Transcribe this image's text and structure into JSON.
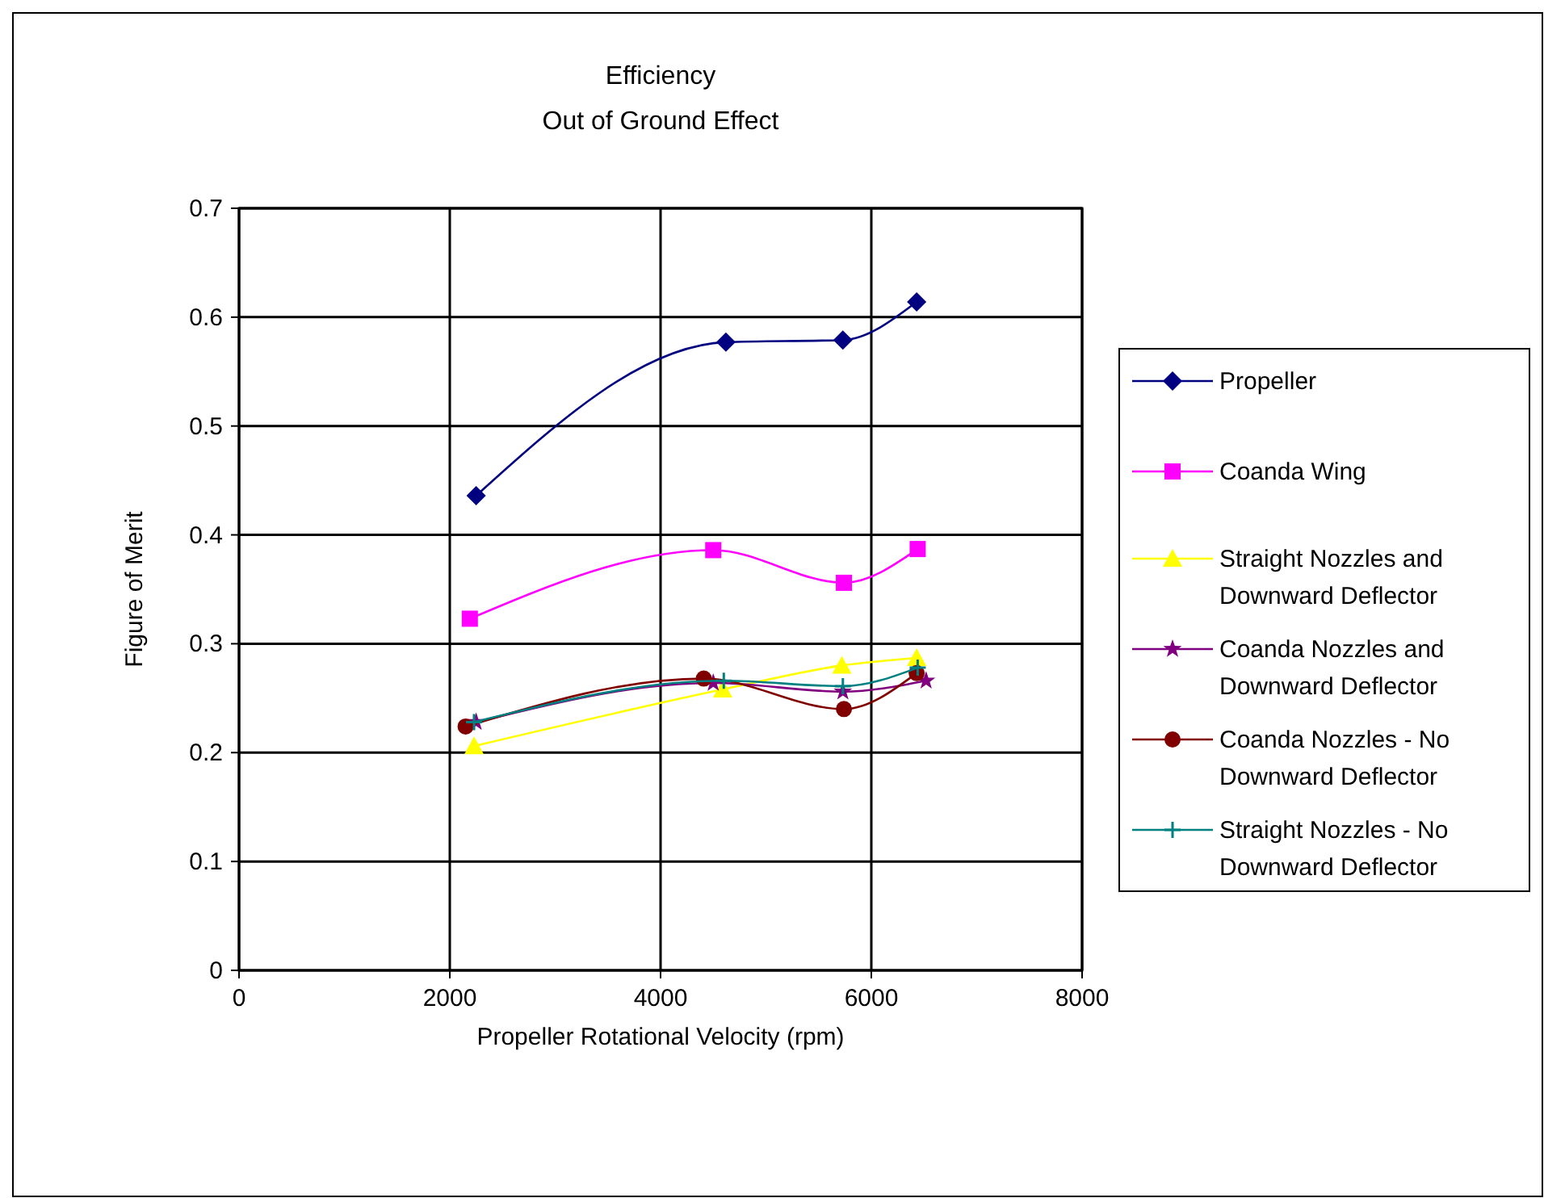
{
  "chart_data": {
    "type": "line",
    "title": "Efficiency",
    "subtitle": "Out of Ground Effect",
    "xlabel": "Propeller Rotational Velocity (rpm)",
    "ylabel": "Figure of Merit",
    "xlim": [
      0,
      8000
    ],
    "xticks": [
      0,
      2000,
      4000,
      6000,
      8000
    ],
    "ylim": [
      0,
      0.7
    ],
    "yticks": [
      0,
      0.1,
      0.2,
      0.3,
      0.4,
      0.5,
      0.6,
      0.7
    ],
    "grid": true,
    "legend": "right",
    "series": [
      {
        "name": "Propeller",
        "color": "#000080",
        "marker": "diamond",
        "x": [
          2250,
          4620,
          5730,
          6430
        ],
        "values": [
          0.436,
          0.577,
          0.579,
          0.614
        ]
      },
      {
        "name": "Coanda Wing",
        "color": "#ff00ff",
        "marker": "square",
        "x": [
          2190,
          4500,
          5740,
          6440
        ],
        "values": [
          0.323,
          0.386,
          0.356,
          0.387
        ]
      },
      {
        "name": "Straight Nozzles and Downward Deflector",
        "color": "#ffff00",
        "marker": "triangle",
        "x": [
          2230,
          4590,
          5720,
          6430
        ],
        "values": [
          0.206,
          0.258,
          0.28,
          0.287
        ]
      },
      {
        "name": "Coanda Nozzles and Downward Deflector",
        "color": "#800080",
        "marker": "star",
        "x": [
          2250,
          4500,
          5730,
          6520
        ],
        "values": [
          0.228,
          0.264,
          0.256,
          0.266
        ]
      },
      {
        "name": "Coanda Nozzles - No Downward Deflector",
        "color": "#800000",
        "marker": "circle",
        "x": [
          2150,
          4410,
          5740,
          6430
        ],
        "values": [
          0.224,
          0.268,
          0.24,
          0.273
        ]
      },
      {
        "name": "Straight Nozzles - No Downward Deflector",
        "color": "#008080",
        "marker": "cross",
        "x": [
          2230,
          4600,
          5730,
          6440
        ],
        "values": [
          0.228,
          0.266,
          0.261,
          0.278
        ]
      }
    ]
  }
}
